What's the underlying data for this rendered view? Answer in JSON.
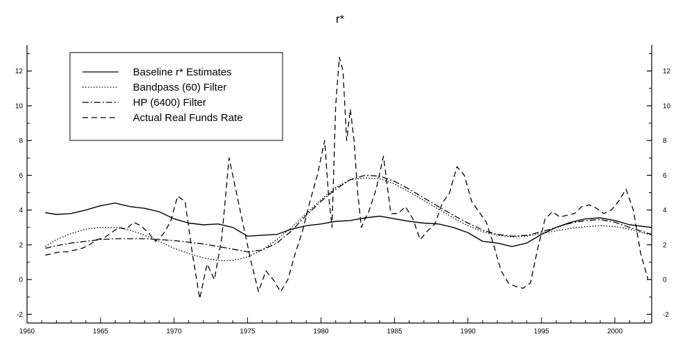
{
  "chart_data": {
    "type": "line",
    "title": "r*",
    "xlabel": "",
    "ylabel": "",
    "xlim": [
      1960,
      2002.5
    ],
    "ylim": [
      -2.5,
      13.5
    ],
    "xticks": [
      1960,
      1965,
      1970,
      1975,
      1980,
      1985,
      1990,
      1995,
      2000
    ],
    "yticks": [
      -2,
      0,
      2,
      4,
      6,
      8,
      10,
      12
    ],
    "grid": false,
    "legend_position": "top-left",
    "series": [
      {
        "name": "Baseline r* Estimates",
        "style": "solid",
        "x": [
          1961.25,
          1962,
          1963,
          1964,
          1965,
          1966,
          1967,
          1968,
          1969,
          1970,
          1971,
          1972,
          1973,
          1974,
          1975,
          1976,
          1977,
          1978,
          1979,
          1980,
          1981,
          1982,
          1983,
          1984,
          1985,
          1986,
          1987,
          1988,
          1989,
          1990,
          1991,
          1992,
          1993,
          1994,
          1995,
          1996,
          1997,
          1998,
          1999,
          2000,
          2001,
          2002.5
        ],
        "y": [
          3.85,
          3.75,
          3.8,
          4.0,
          4.25,
          4.4,
          4.2,
          4.1,
          3.9,
          3.5,
          3.25,
          3.15,
          3.2,
          3.0,
          2.5,
          2.55,
          2.6,
          2.9,
          3.1,
          3.2,
          3.35,
          3.4,
          3.55,
          3.65,
          3.5,
          3.35,
          3.25,
          3.2,
          3.0,
          2.7,
          2.2,
          2.1,
          1.9,
          2.1,
          2.6,
          3.0,
          3.3,
          3.5,
          3.55,
          3.4,
          3.15,
          3.0
        ]
      },
      {
        "name": "Bandpass (60) Filter",
        "style": "dotted",
        "x": [
          1961.25,
          1962,
          1963,
          1964,
          1965,
          1966,
          1967,
          1968,
          1969,
          1970,
          1971,
          1972,
          1973,
          1974,
          1975,
          1976,
          1977,
          1978,
          1979,
          1980,
          1981,
          1982,
          1983,
          1984,
          1985,
          1986,
          1987,
          1988,
          1989,
          1990,
          1991,
          1992,
          1993,
          1994,
          1995,
          1996,
          1997,
          1998,
          1999,
          2000,
          2001,
          2002.5
        ],
        "y": [
          1.9,
          2.3,
          2.65,
          2.9,
          3.0,
          3.0,
          2.85,
          2.55,
          2.2,
          1.8,
          1.5,
          1.25,
          1.1,
          1.1,
          1.3,
          1.7,
          2.3,
          3.0,
          3.8,
          4.6,
          5.3,
          5.75,
          5.85,
          5.8,
          5.5,
          5.05,
          4.55,
          4.05,
          3.55,
          3.1,
          2.75,
          2.55,
          2.45,
          2.5,
          2.65,
          2.8,
          2.95,
          3.05,
          3.1,
          3.05,
          2.9,
          2.55
        ]
      },
      {
        "name": "HP (6400) Filter",
        "style": "dashdot",
        "x": [
          1961.25,
          1962,
          1963,
          1964,
          1965,
          1966,
          1967,
          1968,
          1969,
          1970,
          1971,
          1972,
          1973,
          1974,
          1975,
          1976,
          1977,
          1978,
          1979,
          1980,
          1981,
          1982,
          1983,
          1984,
          1985,
          1986,
          1987,
          1988,
          1989,
          1990,
          1991,
          1992,
          1993,
          1994,
          1995,
          1996,
          1997,
          1998,
          1999,
          2000,
          2001,
          2002.5
        ],
        "y": [
          1.8,
          1.95,
          2.1,
          2.2,
          2.3,
          2.35,
          2.35,
          2.35,
          2.3,
          2.25,
          2.15,
          2.05,
          1.9,
          1.75,
          1.6,
          1.7,
          2.1,
          2.8,
          3.7,
          4.5,
          5.2,
          5.75,
          6.0,
          5.95,
          5.65,
          5.2,
          4.7,
          4.2,
          3.7,
          3.25,
          2.85,
          2.6,
          2.5,
          2.55,
          2.75,
          3.0,
          3.25,
          3.4,
          3.45,
          3.3,
          3.0,
          2.6
        ]
      },
      {
        "name": "Actual Real Funds Rate",
        "style": "dashed",
        "x": [
          1961.25,
          1961.75,
          1962.25,
          1962.75,
          1963.25,
          1963.75,
          1964.25,
          1964.75,
          1965.25,
          1965.75,
          1966.25,
          1966.75,
          1967.25,
          1967.75,
          1968.25,
          1968.75,
          1969.25,
          1969.75,
          1970.25,
          1970.75,
          1971.25,
          1971.75,
          1972.25,
          1972.75,
          1973.25,
          1973.75,
          1974.25,
          1974.75,
          1975.25,
          1975.75,
          1976.25,
          1976.75,
          1977.25,
          1977.75,
          1978.25,
          1978.75,
          1979.25,
          1979.75,
          1980.25,
          1980.5,
          1980.75,
          1981.0,
          1981.25,
          1981.5,
          1981.75,
          1982.0,
          1982.25,
          1982.5,
          1982.75,
          1983.0,
          1983.25,
          1983.75,
          1984.25,
          1984.75,
          1985.25,
          1985.75,
          1986.25,
          1986.75,
          1987.25,
          1987.75,
          1988.25,
          1988.75,
          1989.25,
          1989.75,
          1990.25,
          1990.75,
          1991.25,
          1991.75,
          1992.25,
          1992.75,
          1993.25,
          1993.75,
          1994.25,
          1994.75,
          1995.25,
          1995.75,
          1996.25,
          1996.75,
          1997.25,
          1997.75,
          1998.25,
          1998.75,
          1999.25,
          1999.75,
          2000.25,
          2000.75,
          2001.25,
          2001.75,
          2002.25
        ],
        "y": [
          1.4,
          1.5,
          1.6,
          1.6,
          1.7,
          1.8,
          2.0,
          2.3,
          2.4,
          2.7,
          3.0,
          2.9,
          3.3,
          3.1,
          2.7,
          2.2,
          2.6,
          3.3,
          4.8,
          4.5,
          1.5,
          -1.1,
          0.9,
          0.0,
          2.4,
          7.0,
          5.0,
          3.0,
          1.0,
          -0.7,
          0.5,
          0.0,
          -0.7,
          0.0,
          1.5,
          2.8,
          4.5,
          6.0,
          8.0,
          5.0,
          3.0,
          10.0,
          12.8,
          12.0,
          8.0,
          9.8,
          8.0,
          5.0,
          3.0,
          3.5,
          3.9,
          5.2,
          7.1,
          3.8,
          3.8,
          4.2,
          3.5,
          2.3,
          2.8,
          3.2,
          4.4,
          5.0,
          6.5,
          6.0,
          4.5,
          3.9,
          3.3,
          2.0,
          0.5,
          -0.2,
          -0.4,
          -0.5,
          -0.2,
          1.8,
          3.5,
          3.9,
          3.6,
          3.7,
          3.8,
          4.2,
          4.3,
          4.1,
          3.8,
          4.0,
          4.5,
          5.2,
          4.0,
          1.5,
          0.0
        ]
      }
    ]
  }
}
